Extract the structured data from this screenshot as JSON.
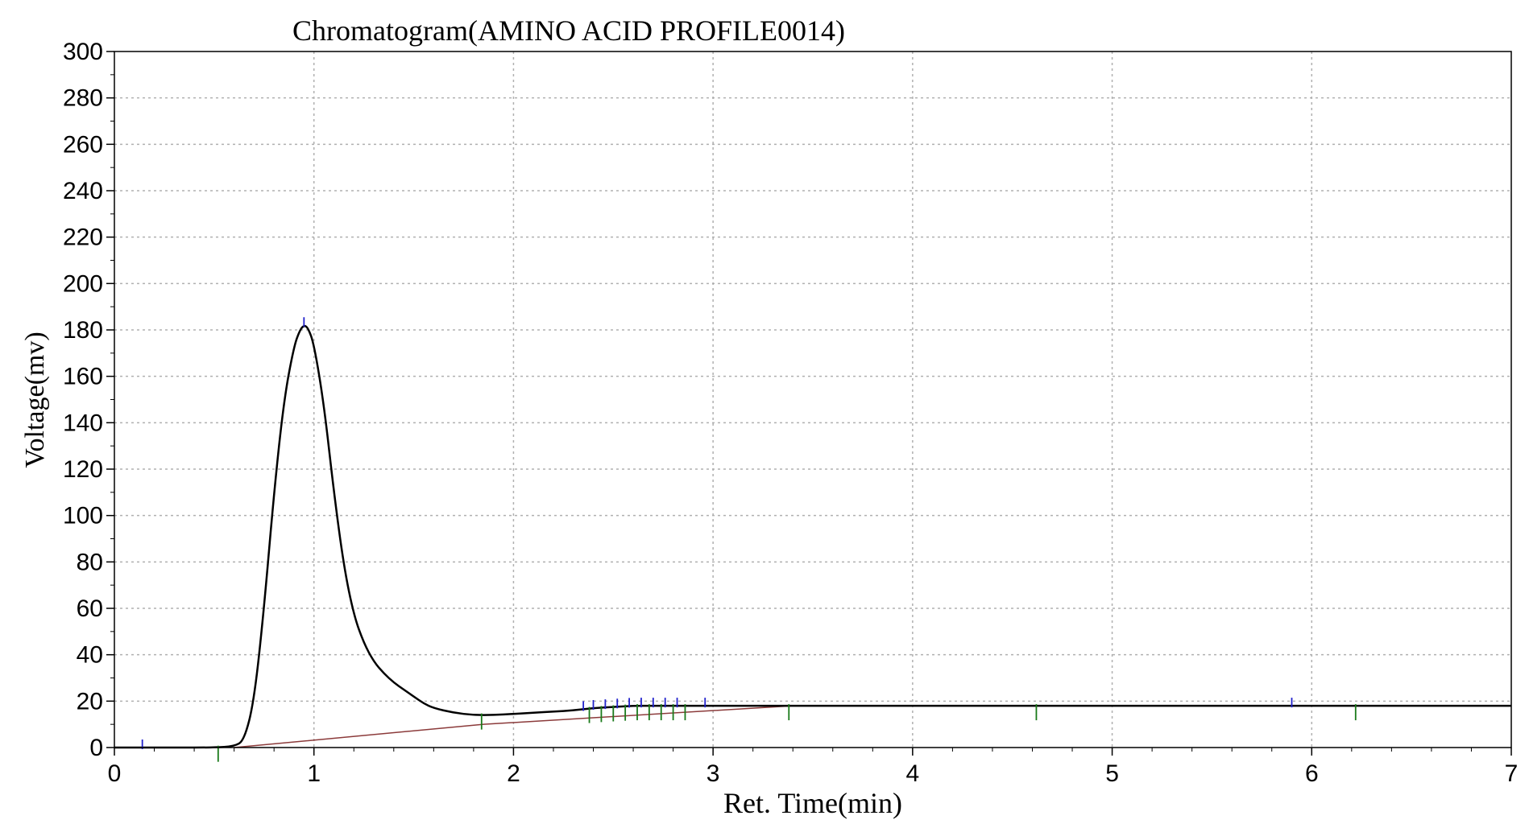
{
  "chart_data": {
    "type": "line",
    "title": "Chromatogram(AMINO ACID PROFILE0014)",
    "xlabel": "Ret. Time(min)",
    "ylabel": "Voltage(mv)",
    "xlim": [
      0,
      7
    ],
    "ylim": [
      0,
      300
    ],
    "xticks": [
      0,
      1,
      2,
      3,
      4,
      5,
      6,
      7
    ],
    "yticks": [
      0,
      20,
      40,
      60,
      80,
      100,
      120,
      140,
      160,
      180,
      200,
      220,
      240,
      260,
      280,
      300
    ],
    "grid": true,
    "colors": {
      "signal": "#000000",
      "baseline": "#8b3a3a",
      "peak_start_marker": "#1a7a1a",
      "peak_apex_marker": "#2222cc",
      "grid": "#b0b0b0"
    },
    "series": [
      {
        "x": [
          0,
          0.3,
          0.5,
          0.6,
          0.65,
          0.7,
          0.75,
          0.8,
          0.85,
          0.9,
          0.93,
          0.95,
          0.97,
          1.0,
          1.05,
          1.1,
          1.15,
          1.2,
          1.25,
          1.3,
          1.35,
          1.4,
          1.45,
          1.5,
          1.55,
          1.6,
          1.7,
          1.8,
          1.9,
          2.0,
          2.1,
          2.2,
          2.3,
          2.4,
          2.5,
          2.6,
          2.7,
          2.8,
          2.9,
          3.0,
          3.2,
          3.4,
          4.0,
          5.0,
          6.0,
          7.0
        ],
        "y": [
          0,
          0,
          0,
          0.5,
          3,
          20,
          60,
          110,
          150,
          173,
          180,
          182,
          181,
          174,
          148,
          110,
          78,
          57,
          45,
          37,
          32,
          28,
          25,
          22,
          19,
          17,
          15,
          14,
          14,
          14.5,
          15,
          15.5,
          16,
          17,
          17.5,
          18,
          18,
          18,
          18,
          18,
          18,
          18,
          18,
          18,
          18,
          18
        ]
      }
    ],
    "baseline_segments": [
      {
        "x": [
          0.6,
          1.85,
          3.4,
          7.0
        ],
        "y": [
          0,
          10,
          18,
          18
        ]
      }
    ],
    "peak_start_markers": [
      0.52,
      1.84,
      2.38,
      2.44,
      2.5,
      2.56,
      2.62,
      2.68,
      2.74,
      2.8,
      2.86,
      3.38,
      4.62,
      6.22
    ],
    "peak_apex_markers": [
      0.14,
      0.95,
      2.35,
      2.4,
      2.46,
      2.52,
      2.58,
      2.64,
      2.7,
      2.76,
      2.82,
      2.96,
      5.9
    ]
  }
}
